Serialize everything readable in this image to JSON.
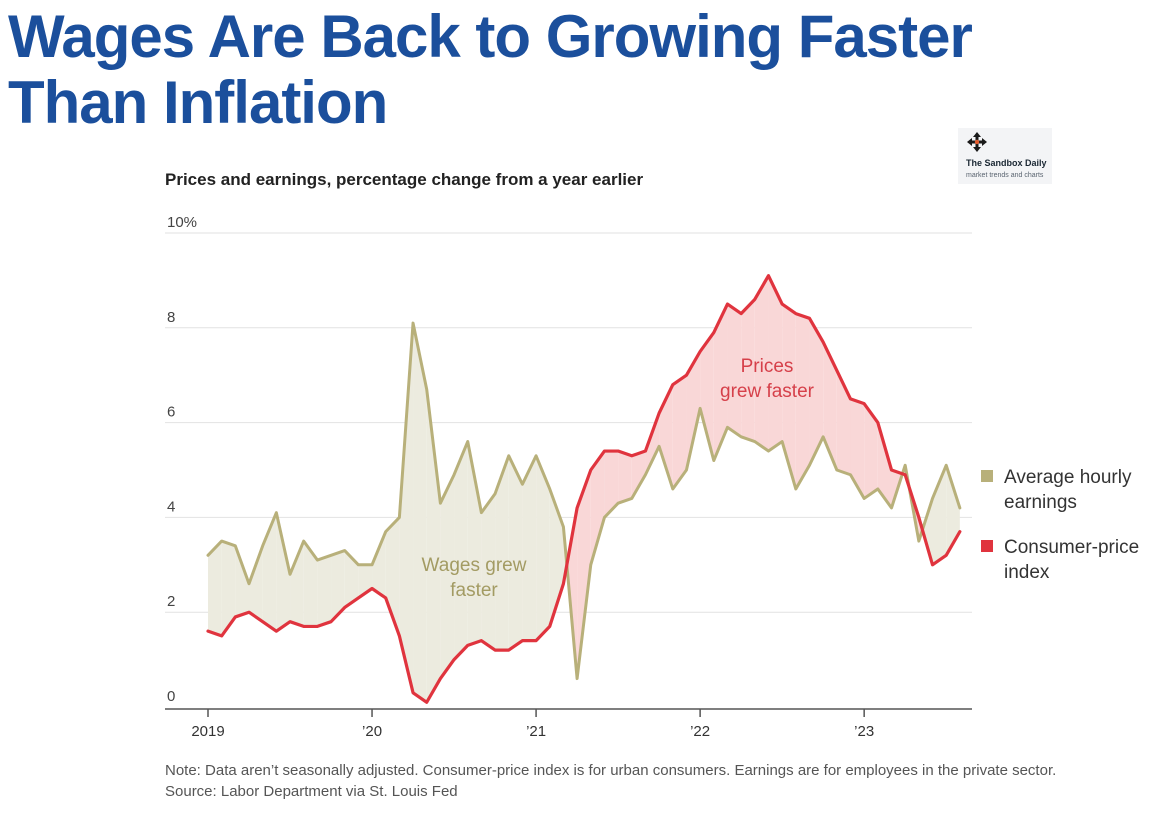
{
  "headline": {
    "line1": "Wages Are Back to Growing Faster",
    "line2": "Than Inflation"
  },
  "watermark": {
    "name": "The Sandbox Daily",
    "tagline": "market trends and charts",
    "icon": "move-arrows-icon"
  },
  "chart_data": {
    "type": "line",
    "title": "Prices and earnings, percentage change from a year earlier",
    "ylim": [
      0,
      10
    ],
    "y_ticks": [
      {
        "value": 0,
        "label": "0"
      },
      {
        "value": 2,
        "label": "2"
      },
      {
        "value": 4,
        "label": "4"
      },
      {
        "value": 6,
        "label": "6"
      },
      {
        "value": 8,
        "label": "8"
      },
      {
        "value": 10,
        "label": "10%"
      }
    ],
    "x_ticks": [
      {
        "value": "2019-01",
        "label": "2019"
      },
      {
        "value": "2020-01",
        "label": "’20"
      },
      {
        "value": "2021-01",
        "label": "’21"
      },
      {
        "value": "2022-01",
        "label": "’22"
      },
      {
        "value": "2023-01",
        "label": "’23"
      }
    ],
    "grid": true,
    "legend_position": "right",
    "x": [
      "2019-01",
      "2019-02",
      "2019-03",
      "2019-04",
      "2019-05",
      "2019-06",
      "2019-07",
      "2019-08",
      "2019-09",
      "2019-10",
      "2019-11",
      "2019-12",
      "2020-01",
      "2020-02",
      "2020-03",
      "2020-04",
      "2020-05",
      "2020-06",
      "2020-07",
      "2020-08",
      "2020-09",
      "2020-10",
      "2020-11",
      "2020-12",
      "2021-01",
      "2021-02",
      "2021-03",
      "2021-04",
      "2021-05",
      "2021-06",
      "2021-07",
      "2021-08",
      "2021-09",
      "2021-10",
      "2021-11",
      "2021-12",
      "2022-01",
      "2022-02",
      "2022-03",
      "2022-04",
      "2022-05",
      "2022-06",
      "2022-07",
      "2022-08",
      "2022-09",
      "2022-10",
      "2022-11",
      "2022-12",
      "2023-01",
      "2023-02",
      "2023-03",
      "2023-04",
      "2023-05",
      "2023-06",
      "2023-07",
      "2023-08"
    ],
    "series": [
      {
        "name": "Average hourly earnings",
        "color": "#b8b07a",
        "values": [
          3.2,
          3.5,
          3.4,
          2.6,
          3.4,
          4.1,
          2.8,
          3.5,
          3.1,
          3.2,
          3.3,
          3.0,
          3.0,
          3.7,
          4.0,
          8.1,
          6.7,
          4.3,
          4.9,
          5.6,
          4.1,
          4.5,
          5.3,
          4.7,
          5.3,
          4.6,
          3.8,
          0.6,
          3.0,
          4.0,
          4.3,
          4.4,
          4.9,
          5.5,
          4.6,
          5.0,
          6.3,
          5.2,
          5.9,
          5.7,
          5.6,
          5.4,
          5.6,
          4.6,
          5.1,
          5.7,
          5.0,
          4.9,
          4.4,
          4.6,
          4.2,
          5.1,
          3.5,
          4.4,
          5.1,
          4.2
        ]
      },
      {
        "name": "Consumer-price index",
        "color": "#e0343e",
        "values": [
          1.6,
          1.5,
          1.9,
          2.0,
          1.8,
          1.6,
          1.8,
          1.7,
          1.7,
          1.8,
          2.1,
          2.3,
          2.5,
          2.3,
          1.5,
          0.3,
          0.1,
          0.6,
          1.0,
          1.3,
          1.4,
          1.2,
          1.2,
          1.4,
          1.4,
          1.7,
          2.6,
          4.2,
          5.0,
          5.4,
          5.4,
          5.3,
          5.4,
          6.2,
          6.8,
          7.0,
          7.5,
          7.9,
          8.5,
          8.3,
          8.6,
          9.1,
          8.5,
          8.3,
          8.2,
          7.7,
          7.1,
          6.5,
          6.4,
          6.0,
          5.0,
          4.9,
          4.0,
          3.0,
          3.2,
          3.7
        ]
      }
    ],
    "annotations": [
      {
        "lines": [
          "Wages grew",
          "faster"
        ],
        "color": "#a39b63"
      },
      {
        "lines": [
          "Prices",
          "grew faster"
        ],
        "color": "#d6404a"
      }
    ],
    "shading": {
      "wages_faster": "#ecebdf",
      "prices_faster": "#f9d7d7"
    }
  },
  "notes": {
    "note": "Note: Data aren’t seasonally adjusted. Consumer-price index is for urban consumers. Earnings are for employees in the private sector.",
    "source": "Source: Labor Department via St. Louis Fed"
  }
}
